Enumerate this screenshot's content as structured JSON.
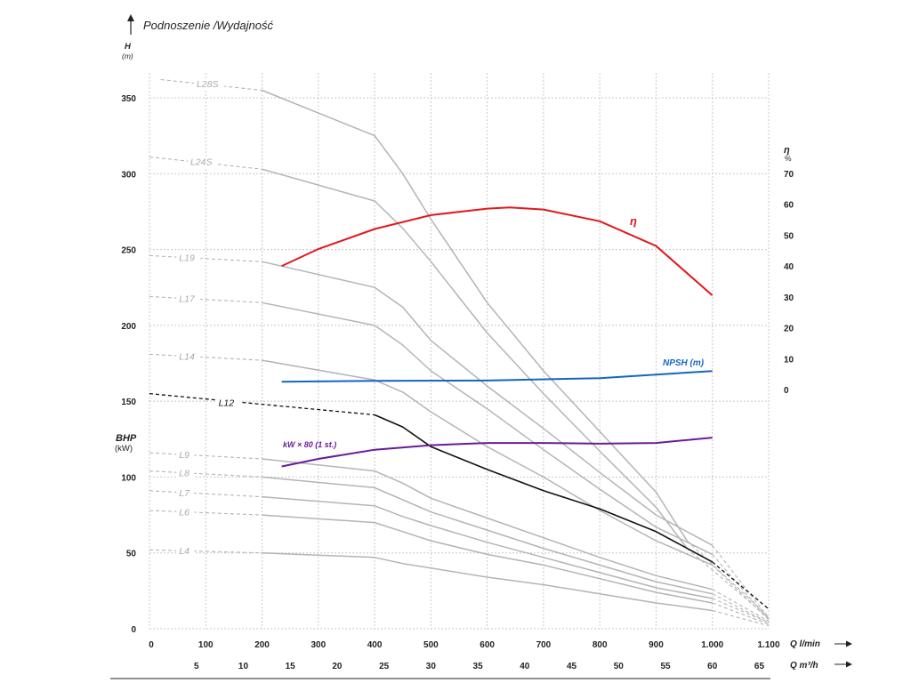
{
  "colors": {
    "grid": "#c8c8c8",
    "pump_curve": "#b4b4b4",
    "highlight_curve": "#111111",
    "efficiency": "#e3161b",
    "npsh": "#1565c0",
    "power": "#6a1b9a"
  },
  "chart_data": {
    "type": "line",
    "title": "Podnoszenie /Wydajność",
    "y_left_label": "H",
    "y_left_unit": "(m)",
    "y_left_ticks": [
      "0",
      "50",
      "100",
      "150",
      "200",
      "250",
      "300",
      "350"
    ],
    "y_left_range": [
      0,
      360
    ],
    "bhp_label": "BHP",
    "bhp_unit": "(kW)",
    "y_right_label": "η",
    "y_right_unit": "%",
    "y_right_ticks": [
      "0",
      "10",
      "20",
      "30",
      "40",
      "50",
      "60",
      "70"
    ],
    "x_label_flow_lmin": "Q l/min",
    "x_ticks_lmin": [
      "0",
      "100",
      "200",
      "300",
      "400",
      "500",
      "600",
      "700",
      "800",
      "900",
      "1.000",
      "1.100"
    ],
    "x_range_lmin": [
      0,
      1100
    ],
    "x_label_flow_m3h": "Q m³/h",
    "x_ticks_m3h": [
      "5",
      "10",
      "15",
      "20",
      "25",
      "30",
      "35",
      "40",
      "45",
      "50",
      "55",
      "60",
      "65"
    ],
    "grid": true,
    "series": [
      {
        "name": "L28S",
        "dashed_x": [
          20,
          200
        ],
        "dashed_y": [
          362,
          355
        ],
        "solid_x": [
          200,
          400,
          450,
          500,
          600,
          700,
          800,
          900,
          955
        ],
        "solid_y": [
          355,
          325,
          300,
          270,
          215,
          170,
          130,
          90,
          58
        ],
        "tail_x": [
          955,
          1100
        ],
        "tail_y": [
          58,
          8
        ]
      },
      {
        "name": "L24S",
        "dashed_x": [
          0,
          200
        ],
        "dashed_y": [
          311,
          303
        ],
        "solid_x": [
          200,
          400,
          450,
          500,
          600,
          700,
          800,
          900,
          955
        ],
        "solid_y": [
          303,
          282,
          264,
          242,
          195,
          155,
          117,
          80,
          53
        ],
        "tail_x": [
          955,
          1100
        ],
        "tail_y": [
          53,
          7
        ]
      },
      {
        "name": "L19",
        "dashed_x": [
          0,
          200
        ],
        "dashed_y": [
          246,
          242
        ],
        "solid_x": [
          200,
          400,
          450,
          500,
          600,
          700,
          800,
          900,
          1000
        ],
        "solid_y": [
          242,
          225,
          212,
          190,
          160,
          132,
          103,
          75,
          55
        ],
        "tail_x": [
          1000,
          1100
        ],
        "tail_y": [
          55,
          7
        ]
      },
      {
        "name": "L17",
        "dashed_x": [
          0,
          200
        ],
        "dashed_y": [
          219,
          215
        ],
        "solid_x": [
          200,
          400,
          450,
          500,
          600,
          700,
          800,
          900,
          1000
        ],
        "solid_y": [
          215,
          200,
          187,
          170,
          145,
          118,
          92,
          67,
          49
        ],
        "tail_x": [
          1000,
          1100
        ],
        "tail_y": [
          49,
          6
        ]
      },
      {
        "name": "L14",
        "dashed_x": [
          0,
          200
        ],
        "dashed_y": [
          181,
          177
        ],
        "solid_x": [
          200,
          400,
          450,
          500,
          600,
          700,
          800,
          900,
          1000
        ],
        "solid_y": [
          177,
          164,
          156,
          143,
          120,
          100,
          78,
          58,
          42
        ],
        "tail_x": [
          1000,
          1100
        ],
        "tail_y": [
          42,
          6
        ]
      },
      {
        "name": "L12",
        "highlight": true,
        "dashed_x": [
          0,
          200,
          400
        ],
        "dashed_y": [
          155,
          148,
          141
        ],
        "solid_x": [
          400,
          450,
          500,
          600,
          700,
          800,
          900,
          1000
        ],
        "solid_y": [
          141,
          133,
          120,
          105,
          91,
          79,
          64,
          44
        ],
        "tail_x": [
          1000,
          1100
        ],
        "tail_y": [
          44,
          13
        ]
      },
      {
        "name": "L9",
        "dashed_x": [
          0,
          200
        ],
        "dashed_y": [
          116,
          112
        ],
        "solid_x": [
          200,
          400,
          450,
          500,
          600,
          700,
          800,
          900,
          1000
        ],
        "solid_y": [
          112,
          104,
          96,
          86,
          73,
          60,
          47,
          35,
          26
        ],
        "tail_x": [
          1000,
          1100
        ],
        "tail_y": [
          26,
          5
        ]
      },
      {
        "name": "L8",
        "dashed_x": [
          0,
          200
        ],
        "dashed_y": [
          104,
          100
        ],
        "solid_x": [
          200,
          400,
          450,
          500,
          600,
          700,
          800,
          900,
          1000
        ],
        "solid_y": [
          100,
          93,
          85,
          77,
          65,
          53,
          42,
          31,
          23
        ],
        "tail_x": [
          1000,
          1100
        ],
        "tail_y": [
          23,
          4
        ]
      },
      {
        "name": "L7",
        "dashed_x": [
          0,
          200
        ],
        "dashed_y": [
          91,
          87
        ],
        "solid_x": [
          200,
          400,
          450,
          500,
          600,
          700,
          800,
          900,
          1000
        ],
        "solid_y": [
          87,
          81,
          74,
          68,
          57,
          47,
          37,
          27,
          20
        ],
        "tail_x": [
          1000,
          1100
        ],
        "tail_y": [
          20,
          4
        ]
      },
      {
        "name": "L6",
        "dashed_x": [
          0,
          200
        ],
        "dashed_y": [
          78,
          75
        ],
        "solid_x": [
          200,
          400,
          450,
          500,
          600,
          700,
          800,
          900,
          1000
        ],
        "solid_y": [
          75,
          70,
          64,
          58,
          49,
          42,
          33,
          24,
          17
        ],
        "tail_x": [
          1000,
          1100
        ],
        "tail_y": [
          17,
          3
        ]
      },
      {
        "name": "L4",
        "dashed_x": [
          0,
          200
        ],
        "dashed_y": [
          52,
          50
        ],
        "solid_x": [
          200,
          400,
          450,
          500,
          600,
          700,
          800,
          900,
          1000
        ],
        "solid_y": [
          50,
          47,
          43,
          40,
          34,
          29,
          23,
          17,
          12
        ],
        "tail_x": [
          1000,
          1100
        ],
        "tail_y": [
          12,
          2
        ]
      }
    ],
    "efficiency": {
      "name": "η",
      "axis": "right_percent",
      "x": [
        235,
        300,
        400,
        500,
        600,
        640,
        700,
        800,
        900,
        1000
      ],
      "y": [
        40,
        45.5,
        52,
        56.5,
        58.6,
        59,
        58.3,
        54.5,
        46.5,
        30.5
      ]
    },
    "npsh": {
      "name": "NPSH (m)",
      "axis": "right_percent",
      "x": [
        235,
        400,
        600,
        800,
        1000
      ],
      "y": [
        2.5,
        2.8,
        2.9,
        3.7,
        6
      ]
    },
    "power": {
      "name": "kW × 80 (1 st.)",
      "axis": "left",
      "x": [
        235,
        300,
        400,
        500,
        600,
        700,
        800,
        900,
        1000
      ],
      "y": [
        107,
        112,
        118,
        121,
        122.5,
        122.5,
        122,
        122.5,
        126
      ]
    }
  }
}
